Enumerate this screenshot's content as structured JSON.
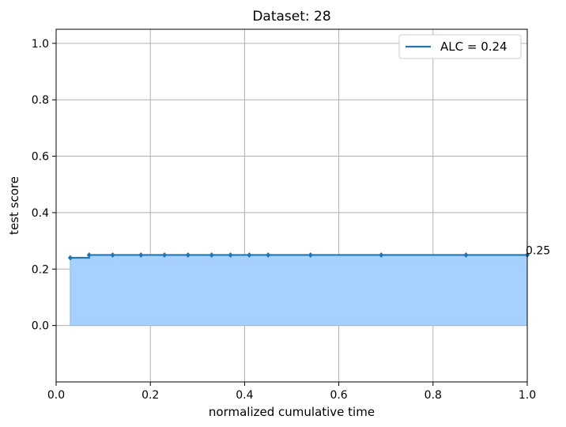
{
  "chart_data": {
    "type": "line",
    "title": "Dataset: 28",
    "xlabel": "normalized cumulative time",
    "ylabel": "test score",
    "xlim": [
      0.0,
      1.0
    ],
    "ylim": [
      -0.2,
      1.05
    ],
    "xticks": [
      0.0,
      0.2,
      0.4,
      0.6,
      0.8,
      1.0
    ],
    "xtick_labels": [
      "0.0",
      "0.2",
      "0.4",
      "0.6",
      "0.8",
      "1.0"
    ],
    "yticks": [
      0.0,
      0.2,
      0.4,
      0.6,
      0.8,
      1.0
    ],
    "ytick_labels": [
      "0.0",
      "0.2",
      "0.4",
      "0.6",
      "0.8",
      "1.0"
    ],
    "grid": true,
    "legend_position": "top-right",
    "series": [
      {
        "name": "ALC = 0.24",
        "color": "#1f77b4",
        "step": true,
        "points": [
          [
            0.03,
            0.24
          ],
          [
            0.07,
            0.25
          ],
          [
            0.12,
            0.25
          ],
          [
            0.18,
            0.25
          ],
          [
            0.23,
            0.25
          ],
          [
            0.28,
            0.25
          ],
          [
            0.33,
            0.25
          ],
          [
            0.37,
            0.25
          ],
          [
            0.41,
            0.25
          ],
          [
            0.45,
            0.25
          ],
          [
            0.54,
            0.25
          ],
          [
            0.69,
            0.25
          ],
          [
            0.87,
            0.25
          ],
          [
            1.0,
            0.25
          ]
        ]
      }
    ],
    "fill_color": "#a6d1ff",
    "annotations": [
      {
        "text": "0.25",
        "x": 1.0,
        "y": 0.25
      }
    ]
  }
}
